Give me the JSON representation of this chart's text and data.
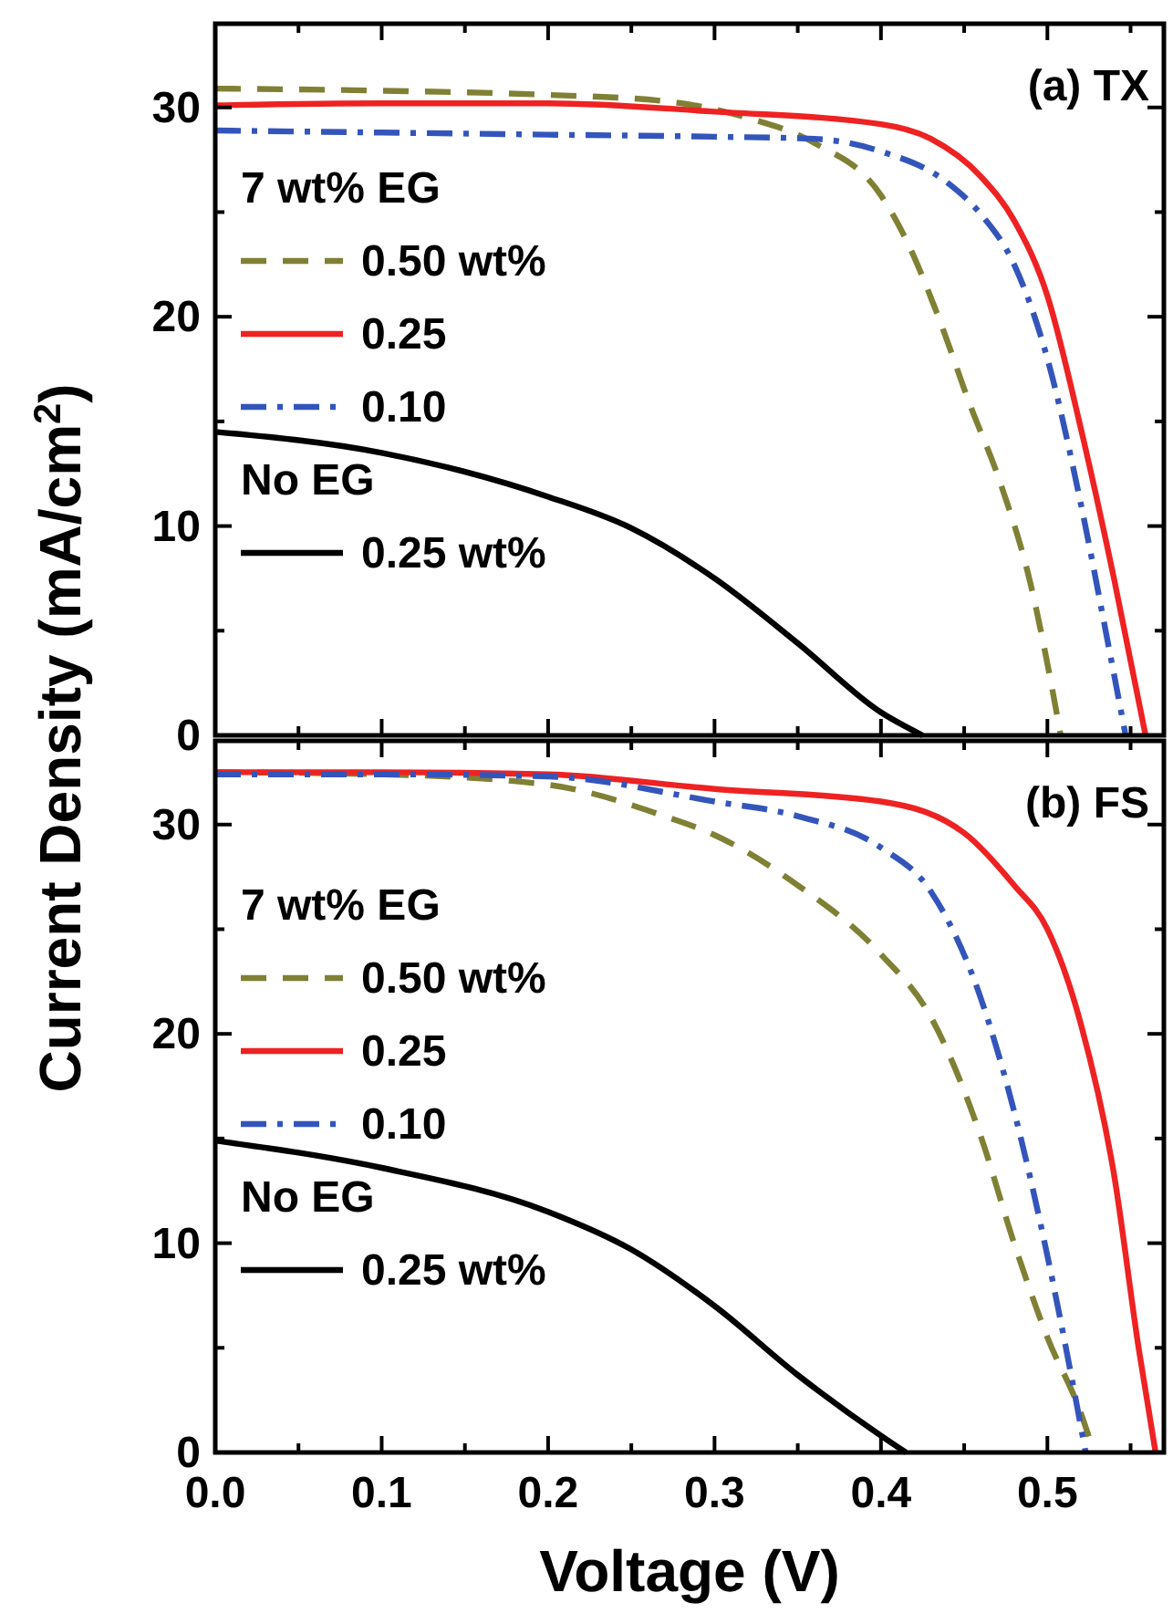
{
  "chart_data": [
    {
      "type": "line",
      "title": "(a) TX",
      "ylabel": "Current Density (mA/cm$^{2}$)",
      "legend": "left",
      "legend_title": "7 wt% EG",
      "annotations": [
        "No EG"
      ],
      "tick_labels": "y",
      "xlim": [
        0,
        0.57
      ],
      "ylim": [
        0,
        34
      ],
      "xticks": [
        0,
        {
          "value": 0.05,
          "label": null
        },
        0.1,
        {
          "value": 0.15,
          "label": null
        },
        0.2,
        {
          "value": 0.25,
          "label": null
        },
        0.3,
        {
          "value": 0.35,
          "label": null
        },
        0.4,
        {
          "value": 0.45,
          "label": null
        },
        0.5,
        {
          "value": 0.55,
          "label": null
        }
      ],
      "yticks": [
        0,
        {
          "value": 5,
          "label": null
        },
        10,
        {
          "value": 15,
          "label": null
        },
        20,
        {
          "value": 25,
          "label": null
        },
        30
      ],
      "series": [
        {
          "name": "0.50 wt%",
          "color": "#808035",
          "line_style": "dashed",
          "x": [
            0,
            0.1,
            0.2,
            0.27,
            0.32,
            0.36,
            0.4,
            0.415,
            0.434,
            0.453,
            0.472,
            0.49,
            0.502,
            0.508
          ],
          "values": [
            30.9,
            30.8,
            30.6,
            30.3,
            29.5,
            28.3,
            25.8,
            23.7,
            20.1,
            15.9,
            12,
            7.2,
            2.6,
            0
          ]
        },
        {
          "name": "0.25",
          "color": "#ee2222",
          "line_style": "solid",
          "x": [
            0,
            0.1,
            0.2,
            0.3,
            0.4,
            0.43,
            0.46,
            0.48,
            0.5,
            0.52,
            0.54,
            0.559
          ],
          "values": [
            30.1,
            30.2,
            30.2,
            29.8,
            29.2,
            28.5,
            26.7,
            24.6,
            21,
            14.7,
            7.5,
            0
          ]
        },
        {
          "name": "0.10",
          "color": "#3355bb",
          "line_style": "dashdot",
          "x": [
            0,
            0.1,
            0.2,
            0.3,
            0.36,
            0.4,
            0.44,
            0.46,
            0.48,
            0.5,
            0.52,
            0.535,
            0.547
          ],
          "values": [
            28.9,
            28.8,
            28.7,
            28.6,
            28.5,
            27.9,
            26.4,
            24.9,
            22.5,
            18,
            11.1,
            5,
            0
          ]
        },
        {
          "name": "0.25 wt%",
          "color": "#000000",
          "line_style": "solid",
          "x": [
            0,
            0.1,
            0.2,
            0.25,
            0.3,
            0.35,
            0.4,
            0.425
          ],
          "values": [
            14.5,
            13.5,
            11.4,
            9.9,
            7.5,
            4.4,
            1.1,
            0
          ]
        }
      ]
    },
    {
      "type": "line",
      "title": "(b) FS",
      "xlabel": "Voltage (V)",
      "legend": "left",
      "legend_title": "7 wt% EG",
      "annotations": [
        "No EG"
      ],
      "xlim": [
        0,
        0.57
      ],
      "ylim": [
        0,
        34
      ],
      "xticks": [
        {
          "value": 0,
          "label": "0.0"
        },
        {
          "value": 0.05,
          "label": null
        },
        0.1,
        {
          "value": 0.15,
          "label": null
        },
        0.2,
        {
          "value": 0.25,
          "label": null
        },
        0.3,
        {
          "value": 0.35,
          "label": null
        },
        0.4,
        {
          "value": 0.45,
          "label": null
        },
        0.5,
        {
          "value": 0.55,
          "label": null
        }
      ],
      "yticks": [
        0,
        {
          "value": 5,
          "label": null
        },
        10,
        {
          "value": 15,
          "label": null
        },
        20,
        {
          "value": 25,
          "label": null
        },
        30
      ],
      "series": [
        {
          "name": "0.50 wt%",
          "color": "#808035",
          "line_style": "dashed",
          "x": [
            0,
            0.1,
            0.2,
            0.27,
            0.3,
            0.35,
            0.4,
            0.43,
            0.46,
            0.48,
            0.5,
            0.52,
            0.528
          ],
          "values": [
            32.5,
            32.4,
            31.9,
            30.4,
            29.5,
            27.1,
            23.8,
            20.8,
            15.1,
            10,
            5.5,
            1.9,
            0
          ]
        },
        {
          "name": "0.25",
          "color": "#ee2222",
          "line_style": "solid",
          "x": [
            0,
            0.1,
            0.2,
            0.3,
            0.4,
            0.45,
            0.48,
            0.5,
            0.52,
            0.54,
            0.555,
            0.565
          ],
          "values": [
            32.5,
            32.5,
            32.4,
            31.7,
            31.1,
            29.6,
            27.1,
            25,
            20.5,
            13.3,
            4.9,
            0
          ]
        },
        {
          "name": "0.10",
          "color": "#3355bb",
          "line_style": "dashdot",
          "x": [
            0,
            0.1,
            0.2,
            0.3,
            0.35,
            0.4,
            0.43,
            0.46,
            0.48,
            0.5,
            0.515,
            0.523
          ],
          "values": [
            32.4,
            32.4,
            32.3,
            31.1,
            30.4,
            28.9,
            26.8,
            21.7,
            16.3,
            9.4,
            3.4,
            0
          ]
        },
        {
          "name": "0.25 wt%",
          "color": "#000000",
          "line_style": "solid",
          "x": [
            0,
            0.1,
            0.2,
            0.25,
            0.3,
            0.35,
            0.4,
            0.415
          ],
          "values": [
            14.9,
            13.6,
            11.5,
            9.7,
            7,
            3.7,
            0.8,
            0
          ]
        }
      ]
    }
  ]
}
